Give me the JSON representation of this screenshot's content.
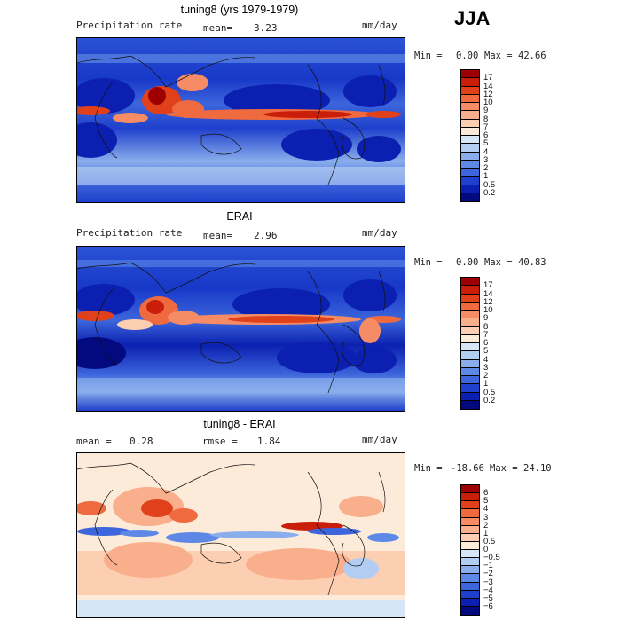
{
  "season": "JJA",
  "units": "mm/day",
  "panels": [
    {
      "title": "tuning8 (yrs 1979-1979)",
      "left_label": "Precipitation rate",
      "stat1_label": "mean=",
      "stat1_value": "3.23",
      "stat2_label": "",
      "stat2_value": "",
      "units": "mm/day",
      "min_label": "Min =",
      "min_value": "0.00",
      "max_label": "Max =",
      "max_value": "42.66"
    },
    {
      "title": "ERAI",
      "left_label": "Precipitation rate",
      "stat1_label": "mean=",
      "stat1_value": "2.96",
      "stat2_label": "",
      "stat2_value": "",
      "units": "mm/day",
      "min_label": "Min =",
      "min_value": "0.00",
      "max_label": "Max =",
      "max_value": "40.83"
    },
    {
      "title": "tuning8 - ERAI",
      "left_label": "",
      "stat1_label": "mean =",
      "stat1_value": "0.28",
      "stat2_label": "rmse =",
      "stat2_value": "1.84",
      "units": "mm/day",
      "min_label": "Min =",
      "min_value": "-18.66",
      "max_label": "Max =",
      "max_value": "24.10"
    }
  ],
  "colorbars": {
    "precip": {
      "labels": [
        "17",
        "14",
        "12",
        "10",
        "9",
        "8",
        "7",
        "6",
        "5",
        "4",
        "3",
        "2",
        "1",
        "0.5",
        "0.2"
      ],
      "colors": [
        "#9e0000",
        "#c81e0a",
        "#e0401a",
        "#f06a40",
        "#f58c66",
        "#f9ae8c",
        "#fcceb2",
        "#fdebd9",
        "#d6e6f7",
        "#b3cdf2",
        "#8aaeec",
        "#5d88e6",
        "#3d66dc",
        "#1f40cc",
        "#0b20b0",
        "#030a80"
      ]
    },
    "diff": {
      "labels": [
        "6",
        "5",
        "4",
        "3",
        "2",
        "1",
        "0.5",
        "0",
        "−0.5",
        "−1",
        "−2",
        "−3",
        "−4",
        "−5",
        "−6"
      ],
      "colors": [
        "#9e0000",
        "#c81e0a",
        "#e0401a",
        "#f06a40",
        "#f58c66",
        "#f9ae8c",
        "#fcceb2",
        "#fdebd9",
        "#d6e6f7",
        "#b3cdf2",
        "#8aaeec",
        "#5d88e6",
        "#3d66dc",
        "#1f40cc",
        "#0b20b0",
        "#030a80"
      ]
    }
  }
}
